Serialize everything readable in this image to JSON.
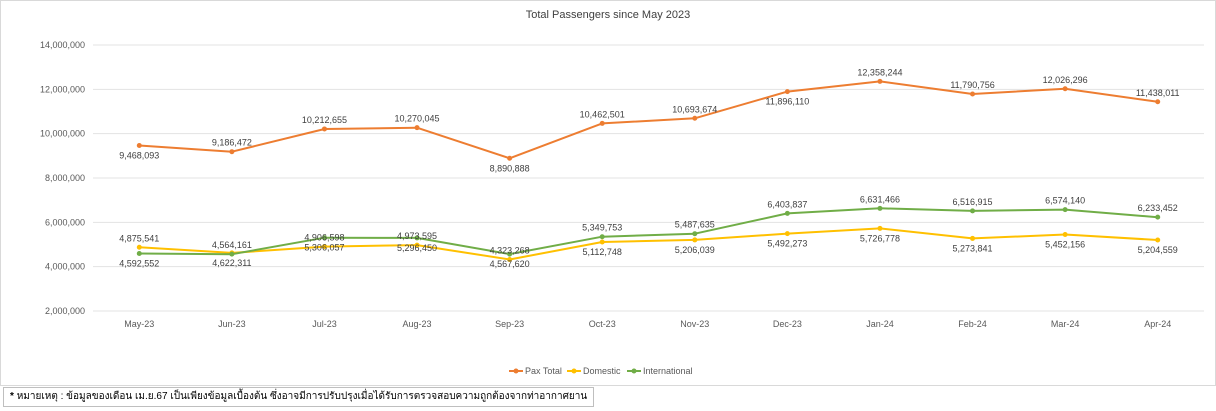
{
  "note": {
    "marker": "*",
    "text": "หมายเหตุ : ข้อมูลของเดือน เม.ย.67 เป็นเพียงข้อมูลเบื้องต้น ซึ่งอาจมีการปรับปรุงเมื่อได้รับการตรวจสอบความถูกต้องจากท่าอากาศยาน"
  },
  "chart_data": {
    "type": "line",
    "title": "Total Passengers since May 2023",
    "xlabel": "",
    "ylabel": "",
    "ylim": [
      2000000,
      14000000
    ],
    "yticks": [
      2000000,
      4000000,
      6000000,
      8000000,
      10000000,
      12000000,
      14000000
    ],
    "ytick_labels": [
      "2,000,000",
      "4,000,000",
      "6,000,000",
      "8,000,000",
      "10,000,000",
      "12,000,000",
      "14,000,000"
    ],
    "grid": true,
    "legend_position": "bottom",
    "categories": [
      "May-23",
      "Jun-23",
      "Jul-23",
      "Aug-23",
      "Sep-23",
      "Oct-23",
      "Nov-23",
      "Dec-23",
      "Jan-24",
      "Feb-24",
      "Mar-24",
      "Apr-24"
    ],
    "series": [
      {
        "name": "Pax Total",
        "color": "#ED7D31",
        "values": [
          9468093,
          9186472,
          10212655,
          10270045,
          8890888,
          10462501,
          10693674,
          11896110,
          12358244,
          11790756,
          12026296,
          11438011
        ],
        "labels": [
          "9,468,093",
          "9,186,472",
          "10,212,655",
          "10,270,045",
          "8,890,888",
          "10,462,501",
          "10,693,674",
          "11,896,110",
          "12,358,244",
          "11,790,756",
          "12,026,296",
          "11,438,011"
        ],
        "label_pos": [
          "below",
          "above",
          "above",
          "above",
          "below",
          "above",
          "above",
          "below",
          "above",
          "above",
          "above",
          "above"
        ]
      },
      {
        "name": "Domestic",
        "color": "#FFC000",
        "values": [
          4875541,
          4622311,
          4906598,
          4973595,
          4323268,
          5112748,
          5206039,
          5492273,
          5726778,
          5273841,
          5452156,
          5204559
        ],
        "labels": [
          "4,875,541",
          "4,622,311",
          "4,906,598",
          "4,973,595",
          "4,323,268",
          "5,112,748",
          "5,206,039",
          "5,492,273",
          "5,726,778",
          "5,273,841",
          "5,452,156",
          "5,204,559"
        ],
        "label_pos": [
          "above",
          "below",
          "above",
          "above",
          "above",
          "below",
          "below",
          "below",
          "below",
          "below",
          "below",
          "below"
        ]
      },
      {
        "name": "International",
        "color": "#70AD47",
        "values": [
          4592552,
          4564161,
          5306057,
          5296450,
          4567620,
          5349753,
          5487635,
          6403837,
          6631466,
          6516915,
          6574140,
          6233452
        ],
        "labels": [
          "4,592,552",
          "4,564,161",
          "5,306,057",
          "5,296,450",
          "4,567,620",
          "5,349,753",
          "5,487,635",
          "6,403,837",
          "6,631,466",
          "6,516,915",
          "6,574,140",
          "6,233,452"
        ],
        "label_pos": [
          "below",
          "above",
          "below",
          "below",
          "below",
          "above",
          "above",
          "above",
          "above",
          "above",
          "above",
          "above"
        ]
      }
    ]
  }
}
